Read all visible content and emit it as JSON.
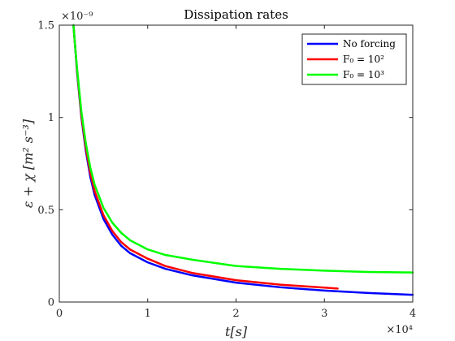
{
  "chart_data": {
    "type": "line",
    "title": "Dissipation rates",
    "xlabel": "t[s]",
    "ylabel": "ε + χ [m² s⁻³]",
    "x_exponent_label": "×10⁴",
    "y_exponent_label": "×10⁻⁹",
    "xlim": [
      0,
      40000
    ],
    "ylim": [
      0,
      1.5e-09
    ],
    "xticks": [
      0,
      10000,
      20000,
      30000,
      40000
    ],
    "xtick_labels": [
      "0",
      "1",
      "2",
      "3",
      "4"
    ],
    "yticks": [
      0,
      5e-10,
      1e-09,
      1.5e-09
    ],
    "ytick_labels": [
      "0",
      "0.5",
      "1",
      "1.5"
    ],
    "grid": false,
    "legend_position": "top-right",
    "series": [
      {
        "name": "No forcing",
        "color": "#0000ff",
        "x": [
          1600,
          1800,
          2000,
          2500,
          3000,
          3500,
          4000,
          5000,
          6000,
          7000,
          8000,
          10000,
          12000,
          15000,
          20000,
          25000,
          30000,
          35000,
          40000
        ],
        "y": [
          1.5e-09,
          1.38e-09,
          1.25e-09,
          1e-09,
          8.2e-10,
          6.8e-10,
          5.8e-10,
          4.5e-10,
          3.65e-10,
          3.05e-10,
          2.65e-10,
          2.15e-10,
          1.8e-10,
          1.45e-10,
          1.05e-10,
          8e-11,
          6.2e-11,
          4.9e-11,
          3.9e-11
        ]
      },
      {
        "name": "F₀ = 10²",
        "color": "#ff0000",
        "x": [
          1600,
          1800,
          2000,
          2500,
          3000,
          3500,
          4000,
          5000,
          6000,
          7000,
          8000,
          10000,
          12000,
          15000,
          20000,
          25000,
          30000,
          31500
        ],
        "y": [
          1.5e-09,
          1.38e-09,
          1.26e-09,
          1.01e-09,
          8.35e-10,
          7e-10,
          6e-10,
          4.7e-10,
          3.85e-10,
          3.25e-10,
          2.85e-10,
          2.35e-10,
          1.95e-10,
          1.58e-10,
          1.18e-10,
          9.4e-11,
          7.8e-11,
          7.3e-11
        ]
      },
      {
        "name": "F₀ = 10³",
        "color": "#00ff00",
        "x": [
          1600,
          1800,
          2000,
          2500,
          3000,
          3500,
          4000,
          5000,
          6000,
          7000,
          8000,
          10000,
          12000,
          15000,
          20000,
          25000,
          30000,
          35000,
          40000
        ],
        "y": [
          1.5e-09,
          1.38e-09,
          1.27e-09,
          1.03e-09,
          8.6e-10,
          7.3e-10,
          6.35e-10,
          5.1e-10,
          4.3e-10,
          3.75e-10,
          3.35e-10,
          2.85e-10,
          2.55e-10,
          2.3e-10,
          1.95e-10,
          1.8e-10,
          1.7e-10,
          1.63e-10,
          1.6e-10
        ]
      }
    ]
  }
}
